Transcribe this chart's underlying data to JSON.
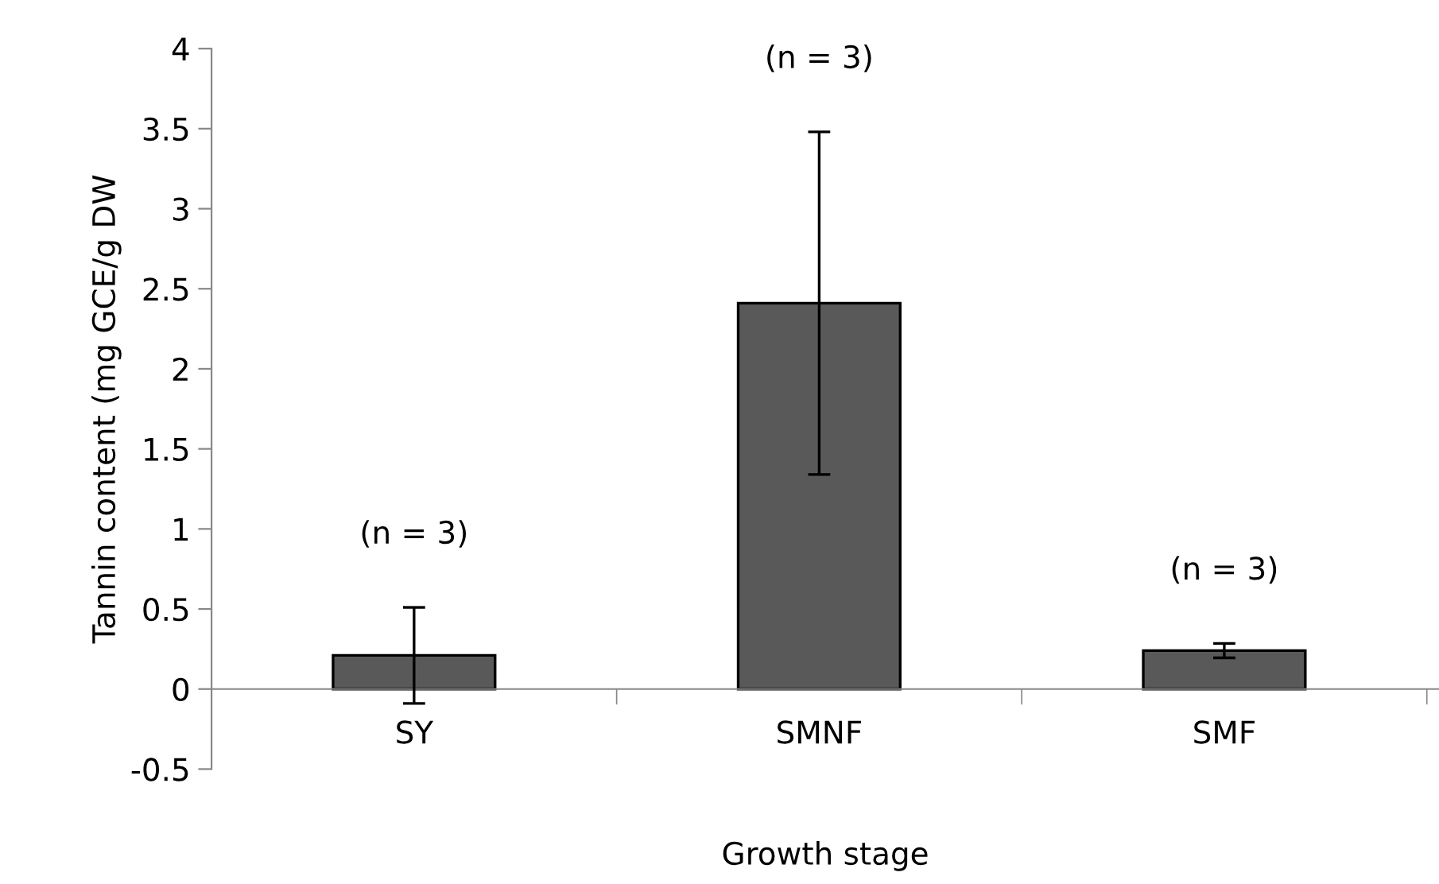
{
  "chart_data": {
    "type": "bar",
    "xlabel": "Growth stage",
    "ylabel": "Tannin content (mg GCE/g DW",
    "categories": [
      "SY",
      "SMNF",
      "SMF"
    ],
    "values": [
      0.21,
      2.41,
      0.24
    ],
    "errors": [
      0.3,
      1.07,
      0.045
    ],
    "color": "#595959",
    "ylim": [
      -0.5,
      4
    ],
    "yticks": [
      -0.5,
      0,
      0.5,
      1,
      1.5,
      2,
      2.5,
      3,
      3.5,
      4
    ],
    "grid": false,
    "annotations": [
      "(n = 3)",
      "(n = 3)",
      "(n = 3)"
    ]
  }
}
